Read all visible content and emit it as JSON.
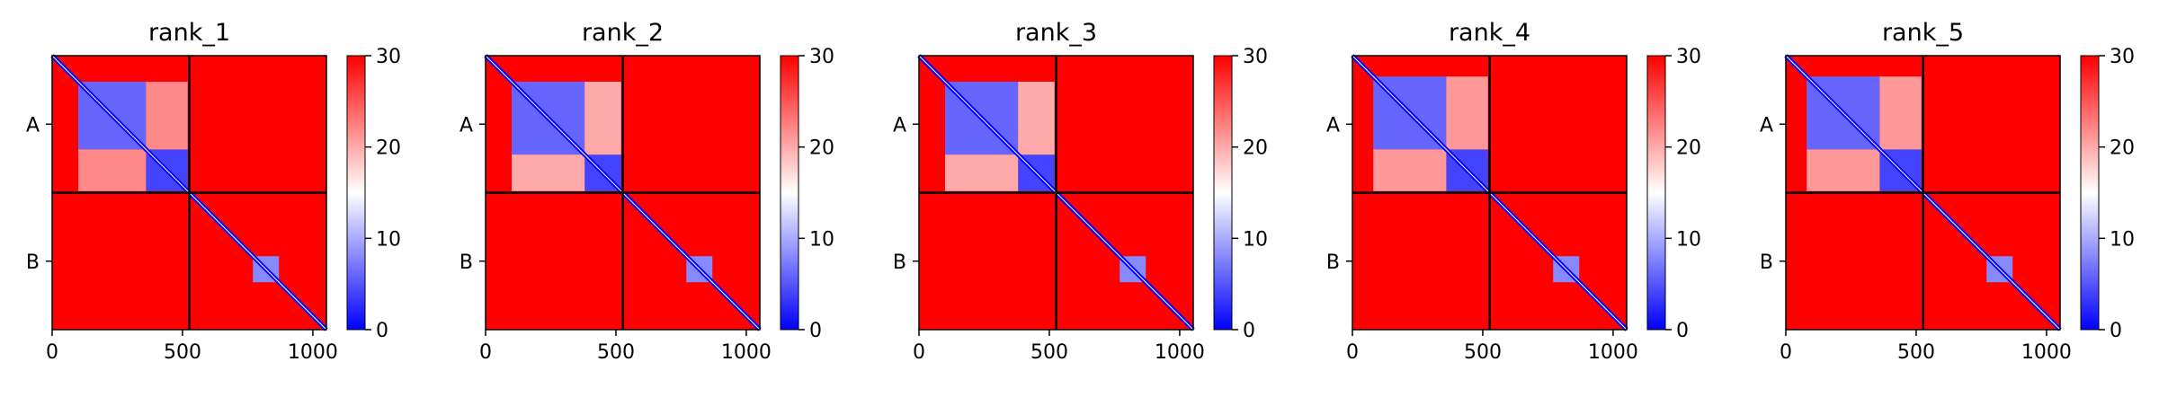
{
  "chart_data": [
    {
      "type": "heatmap",
      "title": "rank_1",
      "x_ticks": [
        0,
        500,
        1000
      ],
      "xlim": [
        0,
        1052
      ],
      "y_chain_labels": [
        "A",
        "B"
      ],
      "chain_boundary": 526,
      "colorbar": {
        "ticks": [
          0,
          10,
          20,
          30
        ],
        "range": [
          0,
          30
        ],
        "colormap": [
          "#0000ff",
          "#ffffff",
          "#ff0000"
        ]
      },
      "blocks": [
        {
          "x0": 100,
          "x1": 360,
          "y0": 100,
          "y1": 360,
          "value": 6
        },
        {
          "x0": 360,
          "x1": 520,
          "y0": 360,
          "y1": 520,
          "value": 4
        },
        {
          "x0": 100,
          "x1": 360,
          "y0": 360,
          "y1": 520,
          "value": 22
        },
        {
          "x0": 360,
          "x1": 520,
          "y0": 100,
          "y1": 360,
          "value": 22
        },
        {
          "x0": 770,
          "x1": 870,
          "y0": 770,
          "y1": 870,
          "value": 8
        }
      ]
    },
    {
      "type": "heatmap",
      "title": "rank_2",
      "x_ticks": [
        0,
        500,
        1000
      ],
      "xlim": [
        0,
        1052
      ],
      "y_chain_labels": [
        "A",
        "B"
      ],
      "chain_boundary": 526,
      "colorbar": {
        "ticks": [
          0,
          10,
          20,
          30
        ],
        "range": [
          0,
          30
        ],
        "colormap": [
          "#0000ff",
          "#ffffff",
          "#ff0000"
        ]
      },
      "blocks": [
        {
          "x0": 100,
          "x1": 380,
          "y0": 100,
          "y1": 380,
          "value": 6
        },
        {
          "x0": 380,
          "x1": 520,
          "y0": 380,
          "y1": 520,
          "value": 4
        },
        {
          "x0": 100,
          "x1": 380,
          "y0": 380,
          "y1": 520,
          "value": 20
        },
        {
          "x0": 380,
          "x1": 520,
          "y0": 100,
          "y1": 380,
          "value": 20
        },
        {
          "x0": 770,
          "x1": 870,
          "y0": 770,
          "y1": 870,
          "value": 8
        }
      ]
    },
    {
      "type": "heatmap",
      "title": "rank_3",
      "x_ticks": [
        0,
        500,
        1000
      ],
      "xlim": [
        0,
        1052
      ],
      "y_chain_labels": [
        "A",
        "B"
      ],
      "chain_boundary": 526,
      "colorbar": {
        "ticks": [
          0,
          10,
          20,
          30
        ],
        "range": [
          0,
          30
        ],
        "colormap": [
          "#0000ff",
          "#ffffff",
          "#ff0000"
        ]
      },
      "blocks": [
        {
          "x0": 100,
          "x1": 380,
          "y0": 100,
          "y1": 380,
          "value": 6
        },
        {
          "x0": 380,
          "x1": 520,
          "y0": 380,
          "y1": 520,
          "value": 4
        },
        {
          "x0": 100,
          "x1": 380,
          "y0": 380,
          "y1": 520,
          "value": 20
        },
        {
          "x0": 380,
          "x1": 520,
          "y0": 100,
          "y1": 380,
          "value": 20
        },
        {
          "x0": 770,
          "x1": 870,
          "y0": 770,
          "y1": 870,
          "value": 8
        }
      ]
    },
    {
      "type": "heatmap",
      "title": "rank_4",
      "x_ticks": [
        0,
        500,
        1000
      ],
      "xlim": [
        0,
        1052
      ],
      "y_chain_labels": [
        "A",
        "B"
      ],
      "chain_boundary": 526,
      "colorbar": {
        "ticks": [
          0,
          10,
          20,
          30
        ],
        "range": [
          0,
          30
        ],
        "colormap": [
          "#0000ff",
          "#ffffff",
          "#ff0000"
        ]
      },
      "blocks": [
        {
          "x0": 80,
          "x1": 360,
          "y0": 80,
          "y1": 360,
          "value": 6
        },
        {
          "x0": 360,
          "x1": 520,
          "y0": 360,
          "y1": 520,
          "value": 4
        },
        {
          "x0": 80,
          "x1": 360,
          "y0": 360,
          "y1": 520,
          "value": 21
        },
        {
          "x0": 360,
          "x1": 520,
          "y0": 80,
          "y1": 360,
          "value": 21
        },
        {
          "x0": 770,
          "x1": 870,
          "y0": 770,
          "y1": 870,
          "value": 8
        }
      ]
    },
    {
      "type": "heatmap",
      "title": "rank_5",
      "x_ticks": [
        0,
        500,
        1000
      ],
      "xlim": [
        0,
        1052
      ],
      "y_chain_labels": [
        "A",
        "B"
      ],
      "chain_boundary": 526,
      "colorbar": {
        "ticks": [
          0,
          10,
          20,
          30
        ],
        "range": [
          0,
          30
        ],
        "colormap": [
          "#0000ff",
          "#ffffff",
          "#ff0000"
        ]
      },
      "blocks": [
        {
          "x0": 80,
          "x1": 360,
          "y0": 80,
          "y1": 360,
          "value": 6
        },
        {
          "x0": 360,
          "x1": 520,
          "y0": 360,
          "y1": 520,
          "value": 4
        },
        {
          "x0": 80,
          "x1": 360,
          "y0": 360,
          "y1": 520,
          "value": 21
        },
        {
          "x0": 360,
          "x1": 520,
          "y0": 80,
          "y1": 360,
          "value": 21
        },
        {
          "x0": 770,
          "x1": 870,
          "y0": 770,
          "y1": 870,
          "value": 8
        }
      ]
    }
  ]
}
